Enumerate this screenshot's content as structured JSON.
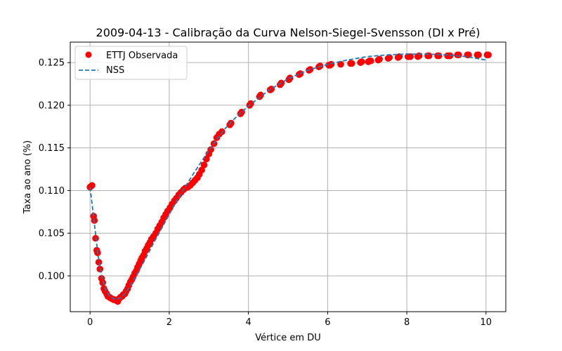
{
  "chart_data": {
    "type": "scatter",
    "title": "2009-04-13 - Calibração da Curva Nelson-Siegel-Svensson (DI x Pré)",
    "xlabel": "Vértice em DU",
    "ylabel": "Taxa ao ano (%)",
    "xlim": [
      -0.5,
      10.5
    ],
    "ylim": [
      0.0958,
      0.1274
    ],
    "xticks": [
      0,
      2,
      4,
      6,
      8,
      10
    ],
    "xtick_labels": [
      "0",
      "2",
      "4",
      "6",
      "8",
      "10"
    ],
    "yticks": [
      0.1,
      0.105,
      0.11,
      0.115,
      0.12,
      0.125
    ],
    "ytick_labels": [
      "0.100",
      "0.105",
      "0.110",
      "0.115",
      "0.120",
      "0.125"
    ],
    "grid": true,
    "legend": "top-left",
    "series": [
      {
        "name": "ETTJ Observada",
        "kind": "scatter",
        "color": "#ff0000",
        "x": [
          0.0,
          0.05,
          0.09,
          0.11,
          0.14,
          0.17,
          0.19,
          0.22,
          0.25,
          0.29,
          0.32,
          0.35,
          0.38,
          0.42,
          0.45,
          0.49,
          0.52,
          0.56,
          0.6,
          0.63,
          0.67,
          0.7,
          0.73,
          0.77,
          0.81,
          0.84,
          0.88,
          0.91,
          0.95,
          0.98,
          1.02,
          1.06,
          1.09,
          1.13,
          1.17,
          1.2,
          1.24,
          1.28,
          1.31,
          1.35,
          1.39,
          1.43,
          1.47,
          1.51,
          1.55,
          1.6,
          1.66,
          1.71,
          1.76,
          1.81,
          1.86,
          1.91,
          1.96,
          2.02,
          2.07,
          2.13,
          2.18,
          2.24,
          2.3,
          2.36,
          2.41,
          2.47,
          2.53,
          2.59,
          2.65,
          2.71,
          2.76,
          2.82,
          2.88,
          2.94,
          3.0,
          3.05,
          3.13,
          3.2,
          3.26,
          3.33,
          3.53,
          3.56,
          3.8,
          3.83,
          4.03,
          4.06,
          4.28,
          4.31,
          4.55,
          4.58,
          4.8,
          4.83,
          5.02,
          5.05,
          5.28,
          5.31,
          5.53,
          5.56,
          5.78,
          5.81,
          6.03,
          6.06,
          6.09,
          6.33,
          6.58,
          6.61,
          6.83,
          6.86,
          7.03,
          7.06,
          7.09,
          7.28,
          7.31,
          7.53,
          7.56,
          7.78,
          7.81,
          8.03,
          8.06,
          8.09,
          8.28,
          8.31,
          8.53,
          8.56,
          8.78,
          8.81,
          9.03,
          9.06,
          9.09,
          9.28,
          9.31,
          9.53,
          9.56,
          9.78,
          9.81,
          10.03,
          10.06
        ],
        "y": [
          0.1104,
          0.1106,
          0.107,
          0.1065,
          0.1044,
          0.103,
          0.1027,
          0.1016,
          0.1008,
          0.0997,
          0.0992,
          0.0985,
          0.0982,
          0.0979,
          0.0976,
          0.0975,
          0.0974,
          0.0973,
          0.0972,
          0.0972,
          0.0971,
          0.097,
          0.0973,
          0.0975,
          0.0976,
          0.0978,
          0.0979,
          0.0982,
          0.0985,
          0.0989,
          0.0993,
          0.0996,
          0.0999,
          0.1003,
          0.1006,
          0.101,
          0.1014,
          0.1018,
          0.1021,
          0.1024,
          0.1029,
          0.1032,
          0.1036,
          0.1039,
          0.1043,
          0.1046,
          0.105,
          0.1055,
          0.1059,
          0.1063,
          0.1068,
          0.1072,
          0.1076,
          0.108,
          0.1084,
          0.1088,
          0.1091,
          0.1095,
          0.1098,
          0.1101,
          0.1103,
          0.1104,
          0.1106,
          0.1109,
          0.1112,
          0.1115,
          0.1119,
          0.1124,
          0.113,
          0.1137,
          0.1143,
          0.1148,
          0.1155,
          0.1162,
          0.1166,
          0.1169,
          0.1177,
          0.1179,
          0.119,
          0.1192,
          0.12,
          0.1202,
          0.121,
          0.1212,
          0.1218,
          0.1219,
          0.1224,
          0.1226,
          0.123,
          0.1232,
          0.1236,
          0.1237,
          0.1241,
          0.1242,
          0.1245,
          0.1246,
          0.1247,
          0.1247,
          0.1248,
          0.1248,
          0.1249,
          0.1249,
          0.125,
          0.1251,
          0.1251,
          0.1252,
          0.1252,
          0.1253,
          0.1254,
          0.1255,
          0.1256,
          0.1256,
          0.1257,
          0.1257,
          0.1257,
          0.1257,
          0.1257,
          0.1258,
          0.1258,
          0.1258,
          0.1258,
          0.1258,
          0.1258,
          0.1258,
          0.1258,
          0.1259,
          0.1259,
          0.1259,
          0.1259,
          0.1259,
          0.1259,
          0.1259,
          0.1259
        ]
      },
      {
        "name": "NSS",
        "kind": "line",
        "color": "#1f77b4",
        "dash": "dashed",
        "x": [
          0.0,
          0.05,
          0.1,
          0.15,
          0.2,
          0.3,
          0.4,
          0.5,
          0.6,
          0.7,
          0.8,
          0.9,
          1.0,
          1.2,
          1.4,
          1.6,
          1.8,
          2.0,
          2.2,
          2.4,
          2.6,
          2.8,
          3.0,
          3.2,
          3.4,
          3.6,
          3.8,
          4.0,
          4.5,
          5.0,
          5.5,
          6.0,
          6.5,
          7.0,
          7.5,
          8.0,
          8.5,
          9.0,
          9.5,
          10.0
        ],
        "y": [
          0.1104,
          0.1085,
          0.1065,
          0.1045,
          0.1025,
          0.0998,
          0.0983,
          0.0976,
          0.0973,
          0.0973,
          0.0975,
          0.098,
          0.0987,
          0.1003,
          0.102,
          0.1038,
          0.1055,
          0.1072,
          0.1089,
          0.1104,
          0.1119,
          0.1133,
          0.1147,
          0.116,
          0.1172,
          0.1182,
          0.1191,
          0.1199,
          0.1217,
          0.1231,
          0.1241,
          0.1248,
          0.1253,
          0.1257,
          0.1259,
          0.126,
          0.126,
          0.1259,
          0.1257,
          0.1253
        ]
      }
    ]
  }
}
